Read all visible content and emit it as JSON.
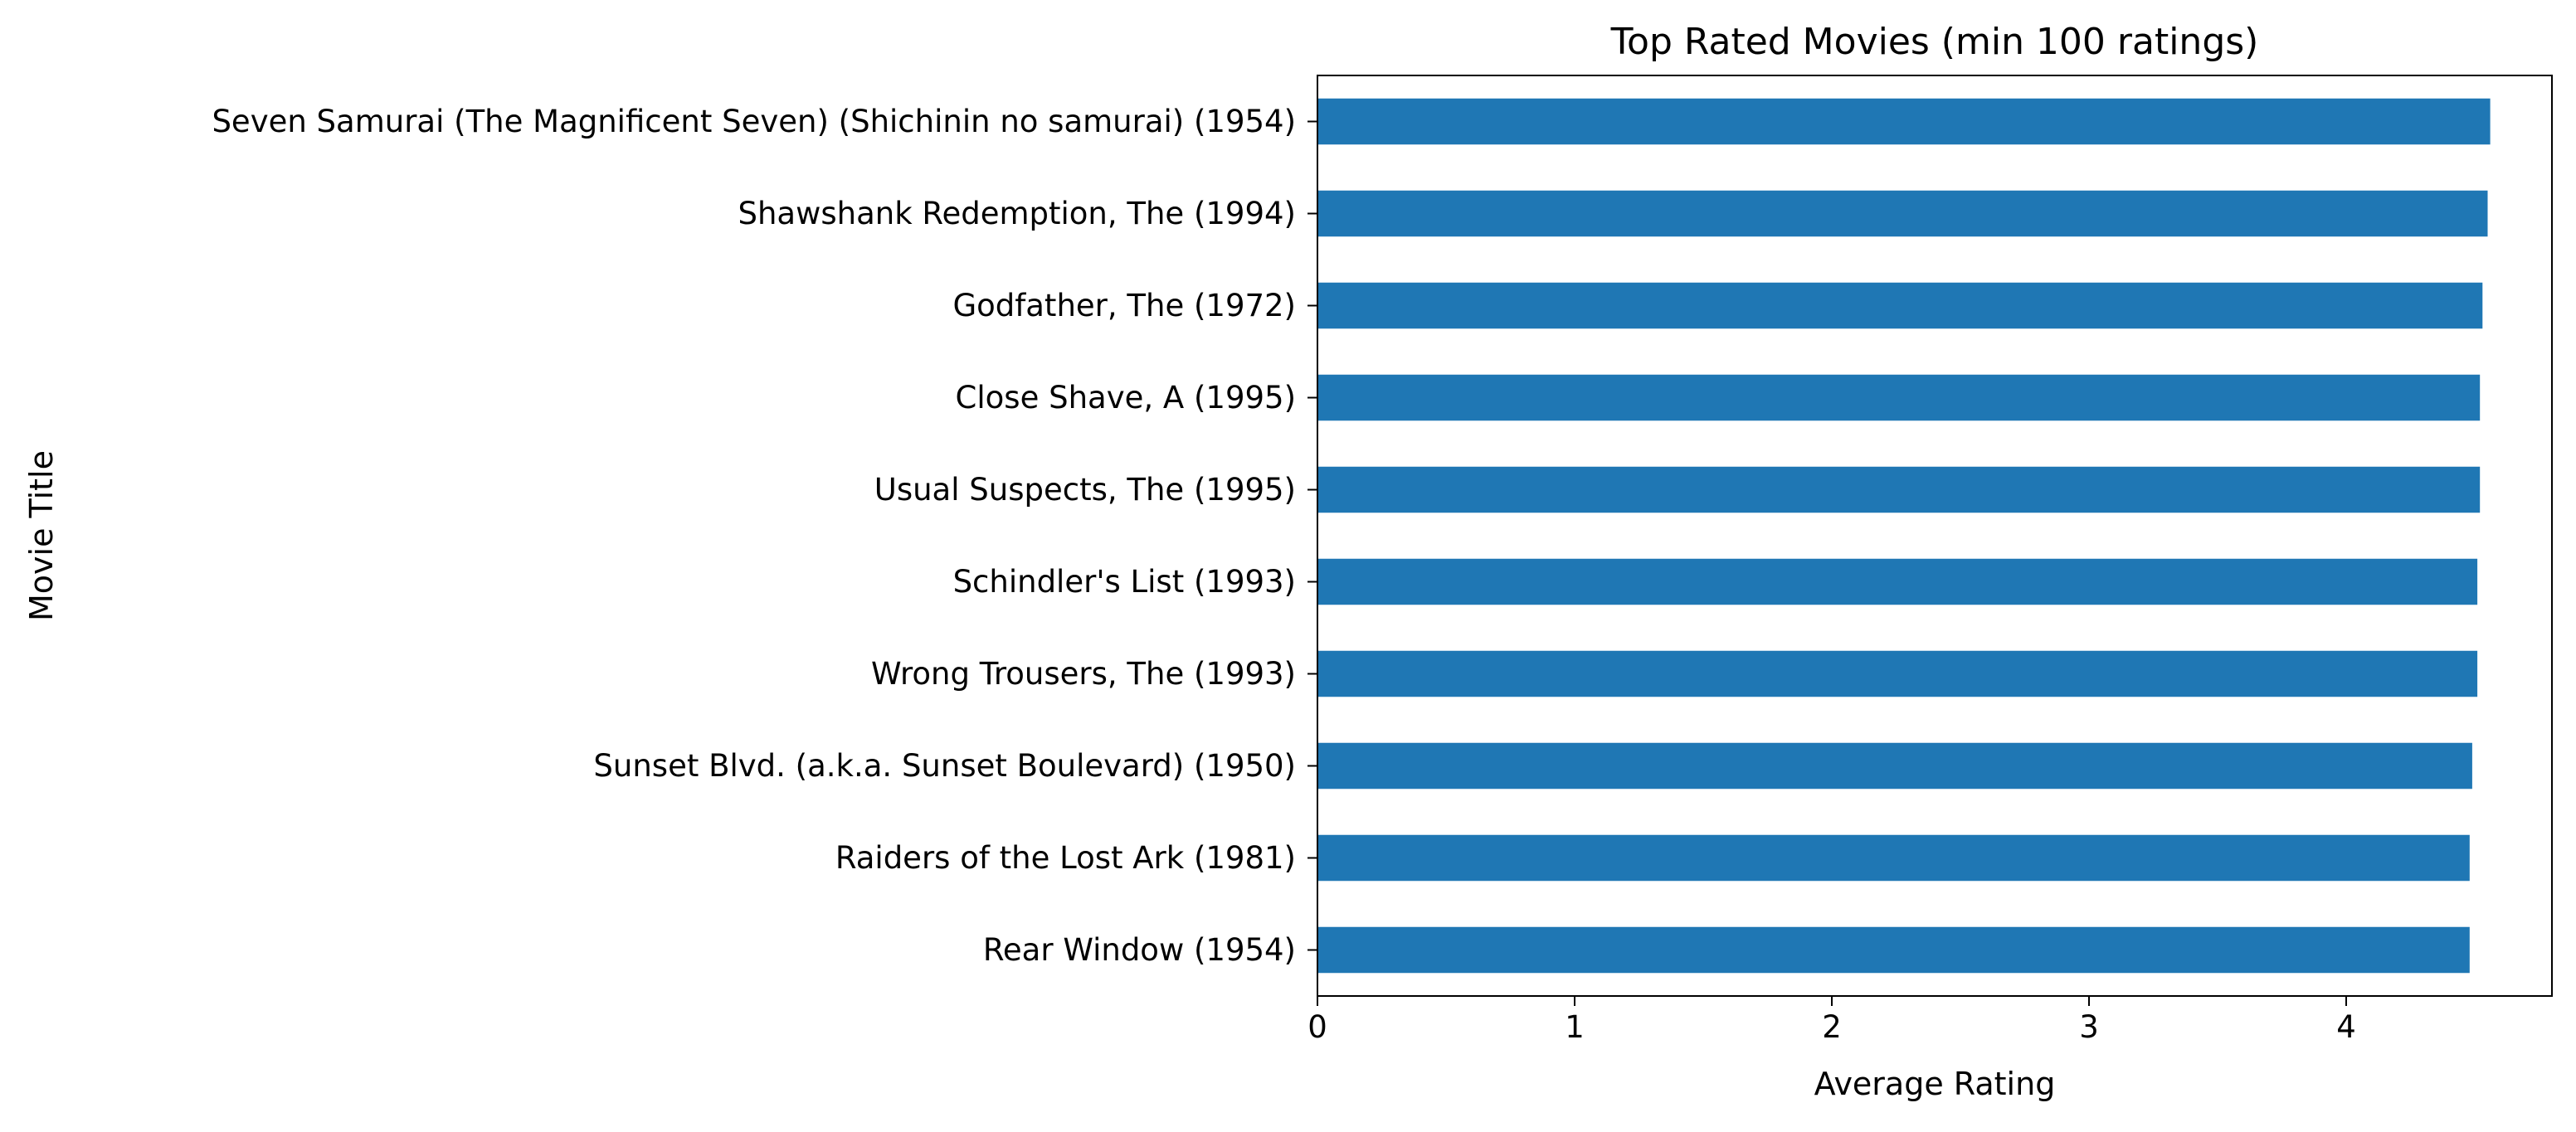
{
  "chart_data": {
    "type": "bar",
    "orientation": "horizontal",
    "title": "Top Rated Movies (min 100 ratings)",
    "xlabel": "Average Rating",
    "ylabel": "Movie Title",
    "categories": [
      "Seven Samurai (The Magnificent Seven) (Shichinin no samurai) (1954)",
      "Shawshank Redemption, The (1994)",
      "Godfather, The (1972)",
      "Close Shave, A (1995)",
      "Usual Suspects, The (1995)",
      "Schindler's List (1993)",
      "Wrong Trousers, The (1993)",
      "Sunset Blvd. (a.k.a. Sunset Boulevard) (1950)",
      "Raiders of the Lost Ark (1981)",
      "Rear Window (1954)"
    ],
    "values": [
      4.56,
      4.55,
      4.53,
      4.52,
      4.52,
      4.51,
      4.51,
      4.49,
      4.48,
      4.48
    ],
    "xlim": [
      0,
      4.8
    ],
    "xticks": [
      0,
      1,
      2,
      3,
      4
    ],
    "bar_color": "#1f77b4",
    "grid": false,
    "legend": "none"
  }
}
